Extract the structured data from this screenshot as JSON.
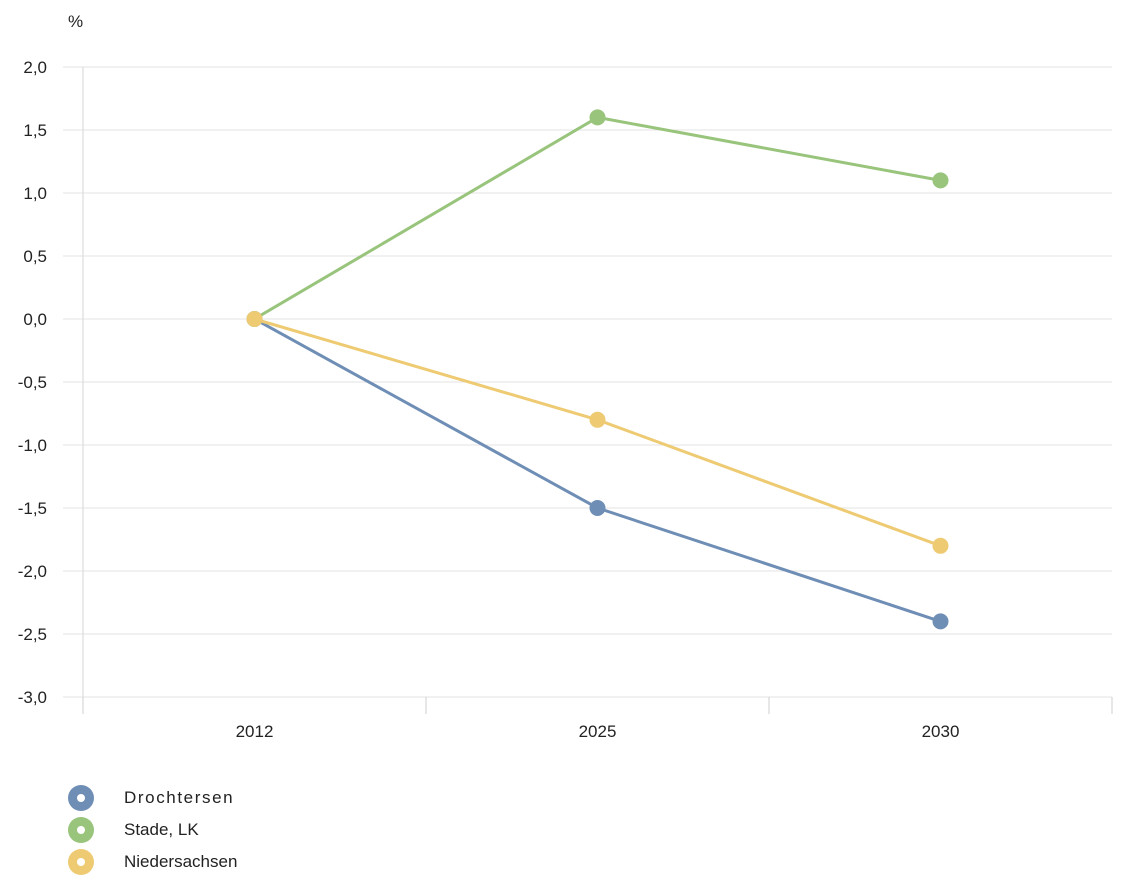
{
  "chart_data": {
    "type": "line",
    "title": "",
    "xlabel": "",
    "ylabel": "%",
    "categories": [
      "2012",
      "2025",
      "2030"
    ],
    "y_ticks": [
      "2,0",
      "1,5",
      "1,0",
      "0,5",
      "0,0",
      "-0,5",
      "-1,0",
      "-1,5",
      "-2,0",
      "-2,5",
      "-3,0"
    ],
    "ylim": [
      -3.0,
      2.0
    ],
    "grid": true,
    "legend_position": "bottom-left",
    "series": [
      {
        "name": "Drochtersen",
        "values": [
          0.0,
          -1.5,
          -2.4
        ],
        "color": "#6f8eb5"
      },
      {
        "name": "Stade, LK",
        "values": [
          0.0,
          1.6,
          1.1
        ],
        "color": "#98c47b"
      },
      {
        "name": "Niedersachsen",
        "values": [
          0.0,
          -0.8,
          -1.8
        ],
        "color": "#eecb73"
      }
    ]
  }
}
